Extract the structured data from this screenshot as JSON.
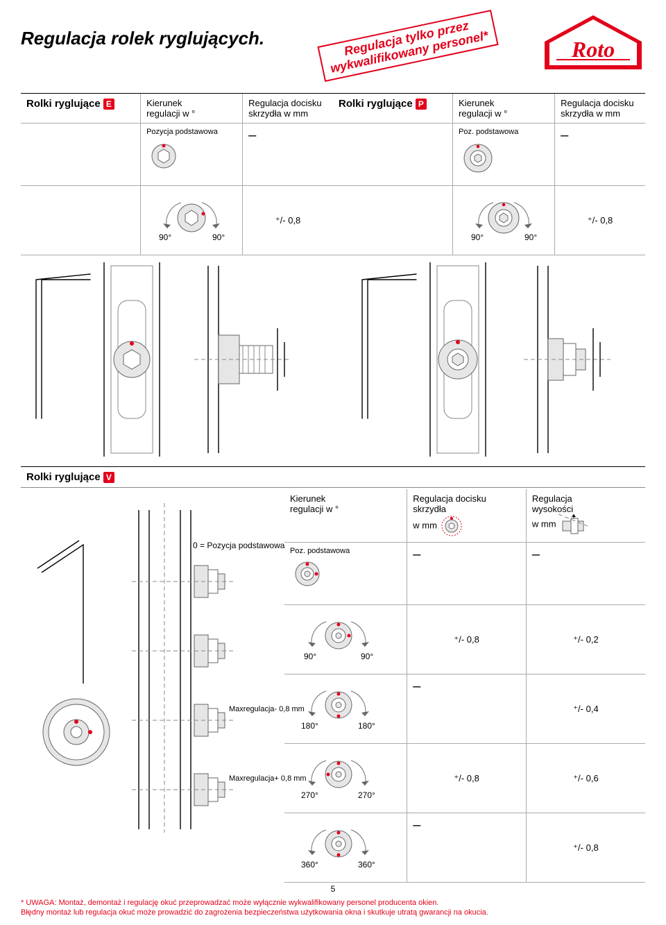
{
  "title": "Regulacja rolek ryglujących.",
  "stamp_line1": "Regulacja tylko przez",
  "stamp_line2": "wykwalifikowany personel*",
  "logo_text": "Roto",
  "colors": {
    "accent": "#e2001a",
    "grey_fill": "#e6e6e6",
    "grey_stroke": "#888888",
    "text": "#000000"
  },
  "fonts": {
    "title_size_pt": 20,
    "body_size_pt": 10,
    "footer_size_pt": 8
  },
  "tableE": {
    "title": "Rolki ryglujące",
    "badge": "E",
    "col1": "Kierunek\nregulacji w °",
    "col2": "Regulacja docisku\nskrzydła w mm",
    "row_pos": "Pozycja podstawowa",
    "deg_l": "90°",
    "deg_r": "90°",
    "val": "⁺/- 0,8",
    "dash": "–"
  },
  "tableP": {
    "title": "Rolki ryglujące",
    "badge": "P",
    "col1": "Kierunek\nregulacji w °",
    "col2": "Regulacja docisku\nskrzydła w mm",
    "row_pos": "Poz. podstawowa",
    "deg_l": "90°",
    "deg_r": "90°",
    "val": "⁺/- 0,8",
    "dash": "–"
  },
  "tableV": {
    "title": "Rolki ryglujące",
    "badge": "V",
    "col1": "Kierunek\nregulacji w °",
    "col2": "Regulacja docisku\nskrzydła\nw mm",
    "col3": "Regulacja\nwysokości\nw mm",
    "zero_label": "0 = Pozycja podstawowa",
    "poz_label": "Poz. podstawowa",
    "max_neg": "Max\nregulacja\n- 0,8 mm",
    "max_pos": "Max\nregulacja\n+ 0,8 mm",
    "rows": [
      {
        "deg_l": "",
        "deg_r": "",
        "v2": "–",
        "v3": "–"
      },
      {
        "deg_l": "90°",
        "deg_r": "90°",
        "v2": "⁺/- 0,8",
        "v3": "⁺/- 0,2"
      },
      {
        "deg_l": "180°",
        "deg_r": "180°",
        "v2": "–",
        "v3": "⁺/- 0,4"
      },
      {
        "deg_l": "270°",
        "deg_r": "270°",
        "v2": "⁺/- 0,8",
        "v3": "⁺/- 0,6"
      },
      {
        "deg_l": "360°",
        "deg_r": "360°",
        "v2": "–",
        "v3": "⁺/- 0,8"
      }
    ]
  },
  "page_number": "5",
  "footer_line1": "* UWAGA: Montaż, demontaż i regulację okuć przeprowadzać może wyłącznie wykwalifikowany personel producenta okien.",
  "footer_line2": "Błędny montaż lub regulacja okuć może prowadzić do zagrożenia bezpieczeństwa użytkowania okna i skutkuje utratą gwarancji na okucia."
}
